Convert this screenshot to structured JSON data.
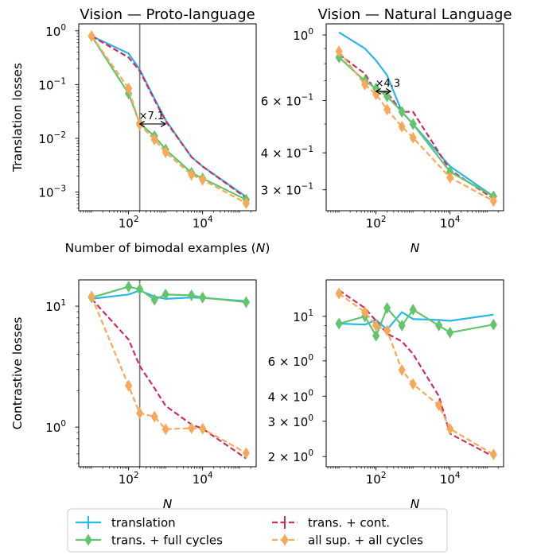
{
  "legend": {
    "placement": "bottom-center",
    "entries": [
      {
        "label": "translation",
        "color": "#29b6e8",
        "dash": "solid",
        "marker": "plus"
      },
      {
        "label": "trans. + cont.",
        "color": "#c9305f",
        "dash": "dashed",
        "marker": "plus"
      },
      {
        "label": "trans. + full cycles",
        "color": "#64c46e",
        "dash": "solid",
        "marker": "diamond"
      },
      {
        "label": "all sup. + all cycles",
        "color": "#f7a95a",
        "dash": "dashed",
        "marker": "diamond"
      }
    ]
  },
  "chart_data": [
    {
      "type": "line",
      "title": "Vision — Proto-language",
      "ylabel": "Translation losses",
      "xlabel_text": "Number of bimodal examples (",
      "xlabel_var": "N",
      "xlabel_close": ")",
      "x_scale": "log",
      "y_scale": "log",
      "xlim": [
        4.5,
        280000
      ],
      "ylim": [
        0.00045,
        1.35
      ],
      "xticks": [
        {
          "v": 100,
          "b": "10",
          "e": "2"
        },
        {
          "v": 10000,
          "b": "10",
          "e": "4"
        }
      ],
      "yticks": [
        {
          "v": 1,
          "b": "10",
          "e": "0"
        },
        {
          "v": 0.1,
          "b": "10",
          "e": "−1"
        },
        {
          "v": 0.01,
          "b": "10",
          "e": "−2"
        },
        {
          "v": 0.001,
          "b": "10",
          "e": "−3"
        }
      ],
      "vline": 200,
      "annotation": {
        "text": "×7.1",
        "x1": 200,
        "x2": 1000,
        "y": 0.0185
      },
      "series": [
        {
          "name": "translation",
          "x": [
            10,
            100,
            200,
            500,
            1000,
            5000,
            10000,
            150000
          ],
          "y": [
            0.8,
            0.38,
            0.19,
            0.055,
            0.022,
            0.0045,
            0.003,
            0.00082
          ]
        },
        {
          "name": "trans. + cont.",
          "x": [
            10,
            100,
            200,
            500,
            1000,
            5000,
            10000,
            150000
          ],
          "y": [
            0.8,
            0.32,
            0.18,
            0.052,
            0.021,
            0.0045,
            0.003,
            0.00078
          ]
        },
        {
          "name": "trans. + full cycles",
          "x": [
            10,
            100,
            200,
            500,
            1000,
            5000,
            10000,
            150000
          ],
          "y": [
            0.8,
            0.068,
            0.019,
            0.011,
            0.0062,
            0.0023,
            0.0018,
            0.00072
          ]
        },
        {
          "name": "all sup. + all cycles",
          "x": [
            10,
            100,
            200,
            500,
            1000,
            5000,
            10000,
            150000
          ],
          "y": [
            0.8,
            0.085,
            0.018,
            0.0095,
            0.0055,
            0.0021,
            0.0017,
            0.00062
          ]
        }
      ]
    },
    {
      "type": "line",
      "title": "Vision — Natural Language",
      "ylabel": "",
      "xlabel_text": "",
      "xlabel_var": "N",
      "xlabel_close": "",
      "x_scale": "log",
      "y_scale": "log",
      "xlim": [
        4.5,
        280000
      ],
      "ylim": [
        0.255,
        1.09
      ],
      "xticks": [
        {
          "v": 100,
          "b": "10",
          "e": "2"
        },
        {
          "v": 10000,
          "b": "10",
          "e": "4"
        }
      ],
      "yticks": [
        {
          "v": 1,
          "b": "10",
          "e": "0"
        },
        {
          "v": 0.6,
          "b": "6 × 10",
          "e": "−1"
        },
        {
          "v": 0.4,
          "b": "4 × 10",
          "e": "−1"
        },
        {
          "v": 0.3,
          "b": "3 × 10",
          "e": "−1"
        }
      ],
      "vline": null,
      "annotation": {
        "text": "×4.3",
        "x1": 100,
        "x2": 250,
        "y": 0.645
      },
      "series": [
        {
          "name": "translation",
          "x": [
            10,
            50,
            100,
            200,
            500,
            1000,
            10000,
            150000
          ],
          "y": [
            1.02,
            0.9,
            0.82,
            0.73,
            0.55,
            0.5,
            0.36,
            0.285
          ]
        },
        {
          "name": "trans. + cont.",
          "x": [
            10,
            50,
            100,
            200,
            500,
            1000,
            10000,
            150000
          ],
          "y": [
            0.86,
            0.74,
            0.64,
            0.64,
            0.55,
            0.55,
            0.35,
            0.28
          ]
        },
        {
          "name": "trans. + full cycles",
          "x": [
            10,
            50,
            100,
            200,
            500,
            1000,
            10000,
            150000
          ],
          "y": [
            0.84,
            0.7,
            0.66,
            0.62,
            0.55,
            0.5,
            0.345,
            0.285
          ]
        },
        {
          "name": "all sup. + all cycles",
          "x": [
            10,
            50,
            100,
            200,
            500,
            1000,
            10000,
            150000
          ],
          "y": [
            0.88,
            0.68,
            0.63,
            0.56,
            0.49,
            0.45,
            0.33,
            0.275
          ]
        }
      ]
    },
    {
      "type": "line",
      "title": "",
      "ylabel": "Contrastive losses",
      "xlabel_text": "",
      "xlabel_var": "N",
      "xlabel_close": "",
      "x_scale": "log",
      "y_scale": "log",
      "xlim": [
        4.5,
        280000
      ],
      "ylim": [
        0.47,
        16.5
      ],
      "xticks": [
        {
          "v": 100,
          "b": "10",
          "e": "2"
        },
        {
          "v": 10000,
          "b": "10",
          "e": "4"
        }
      ],
      "yticks": [
        {
          "v": 10,
          "b": "10",
          "e": "1"
        },
        {
          "v": 1,
          "b": "10",
          "e": "0"
        }
      ],
      "vline": 200,
      "annotation": null,
      "series": [
        {
          "name": "translation",
          "x": [
            10,
            100,
            200,
            500,
            1000,
            5000,
            10000,
            150000
          ],
          "y": [
            11.5,
            12.5,
            13.5,
            12.0,
            11.5,
            11.8,
            11.7,
            11.0
          ]
        },
        {
          "name": "trans. + cont.",
          "x": [
            10,
            100,
            200,
            500,
            1000,
            5000,
            10000,
            150000
          ],
          "y": [
            11.5,
            5.3,
            3.2,
            2.1,
            1.5,
            1.05,
            0.97,
            0.55
          ]
        },
        {
          "name": "trans. + full cycles",
          "x": [
            10,
            100,
            200,
            500,
            1000,
            5000,
            10000,
            150000
          ],
          "y": [
            11.8,
            14.5,
            13.8,
            11.3,
            12.5,
            12.3,
            11.8,
            10.8
          ]
        },
        {
          "name": "all sup. + all cycles",
          "x": [
            10,
            100,
            200,
            500,
            1000,
            5000,
            10000,
            150000
          ],
          "y": [
            12.0,
            2.2,
            1.3,
            1.22,
            0.96,
            0.98,
            0.97,
            0.61
          ]
        }
      ]
    },
    {
      "type": "line",
      "title": "",
      "ylabel": "",
      "xlabel_text": "",
      "xlabel_var": "N",
      "xlabel_close": "",
      "x_scale": "log",
      "y_scale": "log",
      "xlim": [
        4.5,
        280000
      ],
      "ylim": [
        1.78,
        15.2
      ],
      "xticks": [
        {
          "v": 100,
          "b": "10",
          "e": "2"
        },
        {
          "v": 10000,
          "b": "10",
          "e": "4"
        }
      ],
      "yticks": [
        {
          "v": 10,
          "b": "10",
          "e": "1"
        },
        {
          "v": 6,
          "b": "6 × 10",
          "e": "0"
        },
        {
          "v": 4,
          "b": "4 × 10",
          "e": "0"
        },
        {
          "v": 3,
          "b": "3 × 10",
          "e": "0"
        },
        {
          "v": 2,
          "b": "2 × 10",
          "e": "0"
        }
      ],
      "vline": null,
      "annotation": null,
      "series": [
        {
          "name": "translation",
          "x": [
            10,
            50,
            100,
            200,
            500,
            1000,
            5000,
            10000,
            150000
          ],
          "y": [
            9.2,
            9.1,
            9.6,
            8.6,
            10.5,
            9.7,
            9.6,
            9.5,
            10.2
          ]
        },
        {
          "name": "trans. + cont.",
          "x": [
            10,
            50,
            100,
            200,
            500,
            1000,
            5000,
            10000,
            150000
          ],
          "y": [
            13.5,
            11.0,
            9.5,
            8.2,
            7.5,
            6.5,
            4.0,
            2.6,
            2.0
          ]
        },
        {
          "name": "trans. + full cycles",
          "x": [
            10,
            50,
            100,
            200,
            500,
            1000,
            5000,
            10000,
            150000
          ],
          "y": [
            9.2,
            10.0,
            8.0,
            11.0,
            9.0,
            10.8,
            9.0,
            8.3,
            9.1
          ]
        },
        {
          "name": "all sup. + all cycles",
          "x": [
            10,
            50,
            100,
            200,
            500,
            1000,
            5000,
            10000,
            150000
          ],
          "y": [
            13.0,
            10.5,
            9.0,
            8.5,
            5.4,
            4.6,
            3.6,
            2.75,
            2.05
          ]
        }
      ]
    }
  ]
}
